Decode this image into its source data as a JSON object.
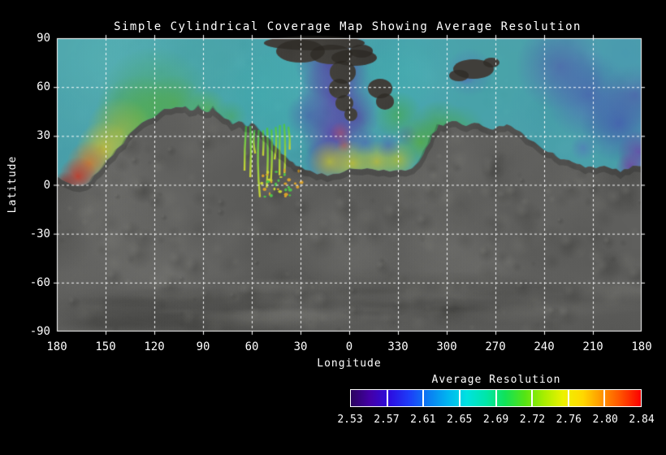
{
  "title": "Simple Cylindrical Coverage Map Showing Average Resolution",
  "chart_data": {
    "type": "heatmap",
    "title": "Simple Cylindrical Coverage Map Showing Average Resolution",
    "xlabel": "Longitude",
    "ylabel": "Latitude",
    "x_tick_labels": [
      "180",
      "150",
      "120",
      "90",
      "60",
      "30",
      "0",
      "330",
      "300",
      "270",
      "240",
      "210",
      "180"
    ],
    "y_tick_labels": [
      "90",
      "60",
      "30",
      "0",
      "-30",
      "-60",
      "-90"
    ],
    "ylim": [
      -90,
      90
    ],
    "x_axis_note": "longitude wraps 180 through 0 back to 180, 30-degree grid spacing",
    "grid": {
      "visible": true,
      "style": "dashed",
      "color": "#ffffff",
      "spacing_deg": 30
    },
    "basemap": "grayscale planetary surface mosaic shown where no coverage exists",
    "colorbar": {
      "title": "Average Resolution",
      "tick_labels": [
        "2.53",
        "2.57",
        "2.61",
        "2.65",
        "2.69",
        "2.72",
        "2.76",
        "2.80",
        "2.84"
      ],
      "min": 2.53,
      "max": 2.84,
      "palette": [
        "#2b045e",
        "#4400a8",
        "#2c0ce0",
        "#1d3cf8",
        "#0b7cf2",
        "#00b4f0",
        "#00e2e0",
        "#00e6a8",
        "#12e256",
        "#54e414",
        "#a8ee00",
        "#eef200",
        "#ffd800",
        "#ff9400",
        "#ff4e00",
        "#fb0000"
      ]
    },
    "coverage_regions": [
      {
        "region": "north polar band, lat ~45 to 90, nearly all longitudes",
        "avg_resolution": "2.61-2.65 (cyan/teal)"
      },
      {
        "region": "lon 180-140, lat 10-45 (upper-left lobe)",
        "avg_resolution": "2.69-2.84, grading green to yellow to orange, red maximum near lon 175 / lat 5-18"
      },
      {
        "region": "lon ~15 through 0 to 355, lat 15-70 (vertical plume)",
        "avg_resolution": "2.53-2.57 (dark purple, small magenta core)"
      },
      {
        "region": "lon ~20 through 0 to 315, lat 5-20",
        "avg_resolution": "2.72-2.76 (yellow band with green fringe)"
      },
      {
        "region": "lon 330-300, lat 15-45",
        "avg_resolution": "2.65-2.69 (green)"
      },
      {
        "region": "lon 265-185, lat 20-65 (upper-right)",
        "avg_resolution": "2.57-2.61 (blue), purple patch 2.53-2.57 near lon 200 / lat 15-25"
      },
      {
        "region": "lon 60-30, lat 10-40",
        "avg_resolution": "2.65-2.72 thin green/yellow finger streaks descending into uncovered terrain"
      }
    ],
    "no_data_gaps": [
      "irregular gray gap around lon 50 through 0 to 350, lat 45-90 (funnel shape)",
      "small gray gap near lon 295-270, lat 63-77 (arrow shape)",
      "all terrain south of the coverage boundary (boundary runs between lat ~0 and ~45): grayscale basemap only"
    ]
  },
  "layout_colors": {
    "background": "#000000",
    "text": "#ffffff",
    "grid": "#ffffff"
  }
}
